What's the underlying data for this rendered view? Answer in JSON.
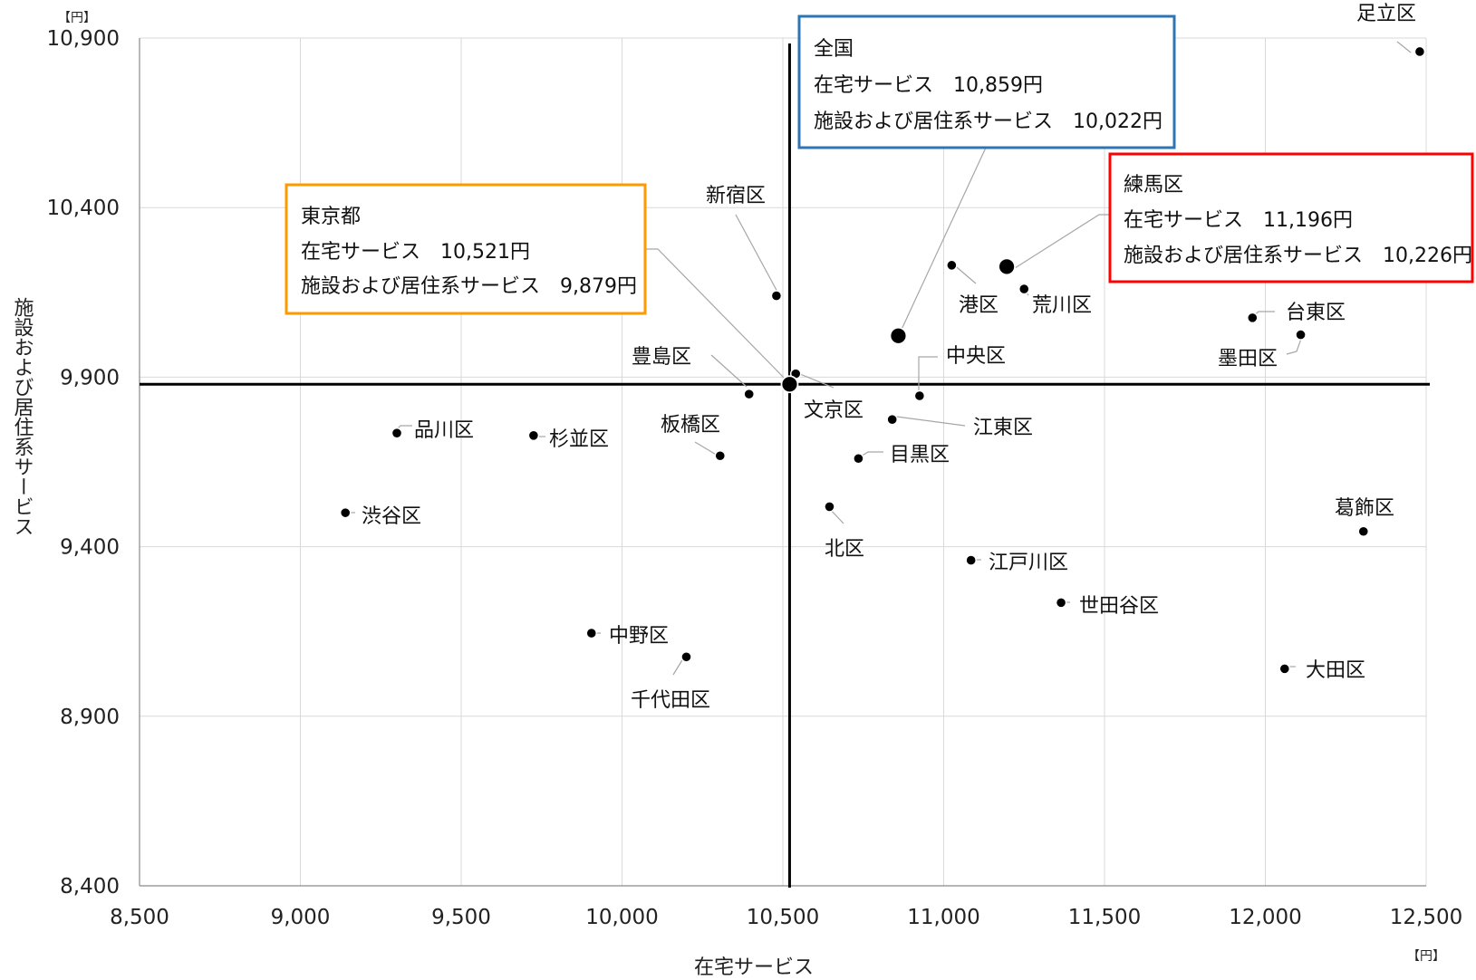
{
  "chart_data": {
    "type": "scatter",
    "xlabel": "在宅サービス",
    "ylabel": "施設および居住系サービス",
    "x_unit": "【円】",
    "y_unit": "【円】",
    "xlim": [
      8500,
      12500
    ],
    "ylim": [
      8400,
      10900
    ],
    "x_ticks": [
      "8,500",
      "9,000",
      "9,500",
      "10,000",
      "10,500",
      "11,000",
      "11,500",
      "12,000",
      "12,500"
    ],
    "y_ticks": [
      "8,400",
      "8,900",
      "9,400",
      "9,900",
      "10,400",
      "10,900"
    ],
    "grid": true,
    "reference_lines": {
      "x": 10521,
      "y": 9879
    },
    "points": [
      {
        "name": "足立区",
        "x": 12480,
        "y": 10860
      },
      {
        "name": "新宿区",
        "x": 10480,
        "y": 10140
      },
      {
        "name": "港区",
        "x": 11025,
        "y": 10230
      },
      {
        "name": "荒川区",
        "x": 11250,
        "y": 10160
      },
      {
        "name": "台東区",
        "x": 11960,
        "y": 10075
      },
      {
        "name": "墨田区",
        "x": 12110,
        "y": 10025
      },
      {
        "name": "中央区",
        "x": 10925,
        "y": 9845
      },
      {
        "name": "文京区",
        "x": 10540,
        "y": 9910
      },
      {
        "name": "豊島区",
        "x": 10395,
        "y": 9850
      },
      {
        "name": "江東区",
        "x": 10840,
        "y": 9775
      },
      {
        "name": "品川区",
        "x": 9300,
        "y": 9735
      },
      {
        "name": "杉並区",
        "x": 9725,
        "y": 9728
      },
      {
        "name": "板橋区",
        "x": 10305,
        "y": 9668
      },
      {
        "name": "目黒区",
        "x": 10735,
        "y": 9660
      },
      {
        "name": "北区",
        "x": 10645,
        "y": 9518
      },
      {
        "name": "渋谷区",
        "x": 9140,
        "y": 9500
      },
      {
        "name": "葛飾区",
        "x": 12305,
        "y": 9445
      },
      {
        "name": "江戸川区",
        "x": 11085,
        "y": 9360
      },
      {
        "name": "世田谷区",
        "x": 11365,
        "y": 9235
      },
      {
        "name": "中野区",
        "x": 9905,
        "y": 9145
      },
      {
        "name": "千代田区",
        "x": 10200,
        "y": 9075
      },
      {
        "name": "大田区",
        "x": 12060,
        "y": 9040
      }
    ],
    "highlights": [
      {
        "key": "national",
        "label": "全国",
        "x": 10859,
        "y": 10022,
        "line1": "在宅サービス　10,859円",
        "line2": "施設および居住系サービス　10,022円",
        "color": "#2e75b6"
      },
      {
        "key": "tokyo",
        "label": "東京都",
        "x": 10521,
        "y": 9879,
        "line1": "在宅サービス　10,521円",
        "line2": "施設および居住系サービス　9,879円",
        "color": "#ff9900"
      },
      {
        "key": "nerima",
        "label": "練馬区",
        "x": 11196,
        "y": 10226,
        "line1": "在宅サービス　11,196円",
        "line2": "施設および居住系サービス　10,226円",
        "color": "#ff0000"
      }
    ]
  }
}
